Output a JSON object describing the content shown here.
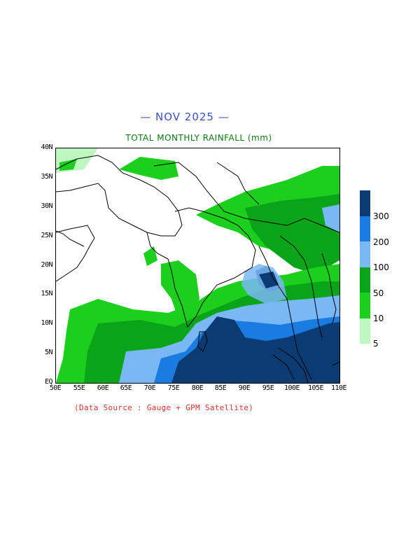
{
  "month_title": "— NOV 2025 —",
  "subtitle": "TOTAL MONTHLY RAINFALL (mm)",
  "source_note": "(Data Source : Gauge + GPM Satellite)",
  "lat_labels": [
    "40N",
    "35N",
    "30N",
    "25N",
    "20N",
    "15N",
    "10N",
    "5N",
    "EQ"
  ],
  "lon_labels": [
    "50E",
    "55E",
    "60E",
    "65E",
    "70E",
    "75E",
    "80E",
    "85E",
    "90E",
    "95E",
    "100E",
    "105E",
    "110E"
  ],
  "legend": {
    "labels": [
      "300",
      "200",
      "100",
      "50",
      "10",
      "5"
    ],
    "colors": [
      "#0a3b73",
      "#1a7be0",
      "#79b8f5",
      "#0aa418",
      "#1ccf1c",
      "#bff7c0"
    ]
  },
  "map": {
    "extent_lon": [
      50,
      110
    ],
    "extent_lat": [
      0,
      40
    ],
    "rain_colors": {
      "light": "#bff7c0",
      "green": "#1ccf1c",
      "darkgreen": "#0aa418",
      "lightblue": "#79b8f5",
      "blue": "#1a7be0",
      "navy": "#0a3b73"
    }
  }
}
